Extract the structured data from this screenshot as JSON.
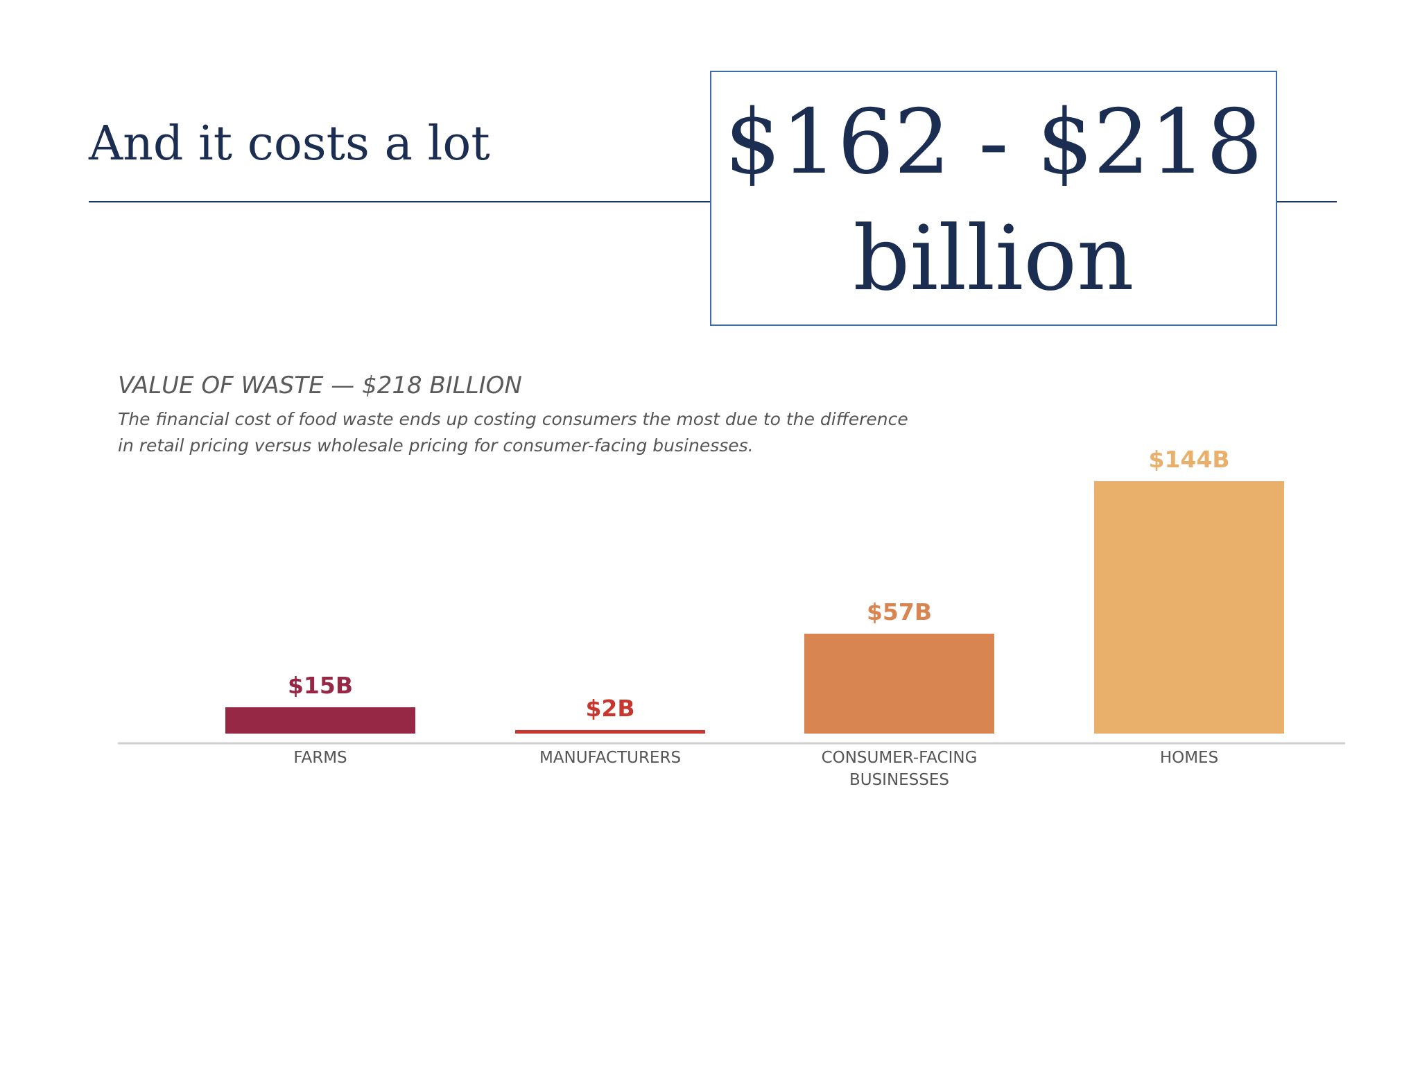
{
  "slide": {
    "title": "And it costs a lot",
    "callout_line1": "$162 - $218",
    "callout_line2": "billion"
  },
  "chart_data": {
    "type": "bar",
    "title": "VALUE OF WASTE — $218 BILLION",
    "subtitle": "The financial cost of food waste ends up costing consumers the most due to the difference in retail pricing versus wholesale pricing for consumer-facing businesses.",
    "categories": [
      [
        "FARMS"
      ],
      [
        "MANUFACTURERS"
      ],
      [
        "CONSUMER-FACING",
        "BUSINESSES"
      ],
      [
        "HOMES"
      ]
    ],
    "values": [
      15,
      2,
      57,
      144
    ],
    "value_labels": [
      "$15B",
      "$2B",
      "$57B",
      "$144B"
    ],
    "colors": [
      "#962845",
      "#c8372d",
      "#d98552",
      "#e8b06b"
    ],
    "label_colors": [
      "#962845",
      "#c8372d",
      "#d98552",
      "#e8b06b"
    ],
    "unit": "$B",
    "ylim": [
      0,
      144
    ],
    "grid": false,
    "legend": "none"
  }
}
